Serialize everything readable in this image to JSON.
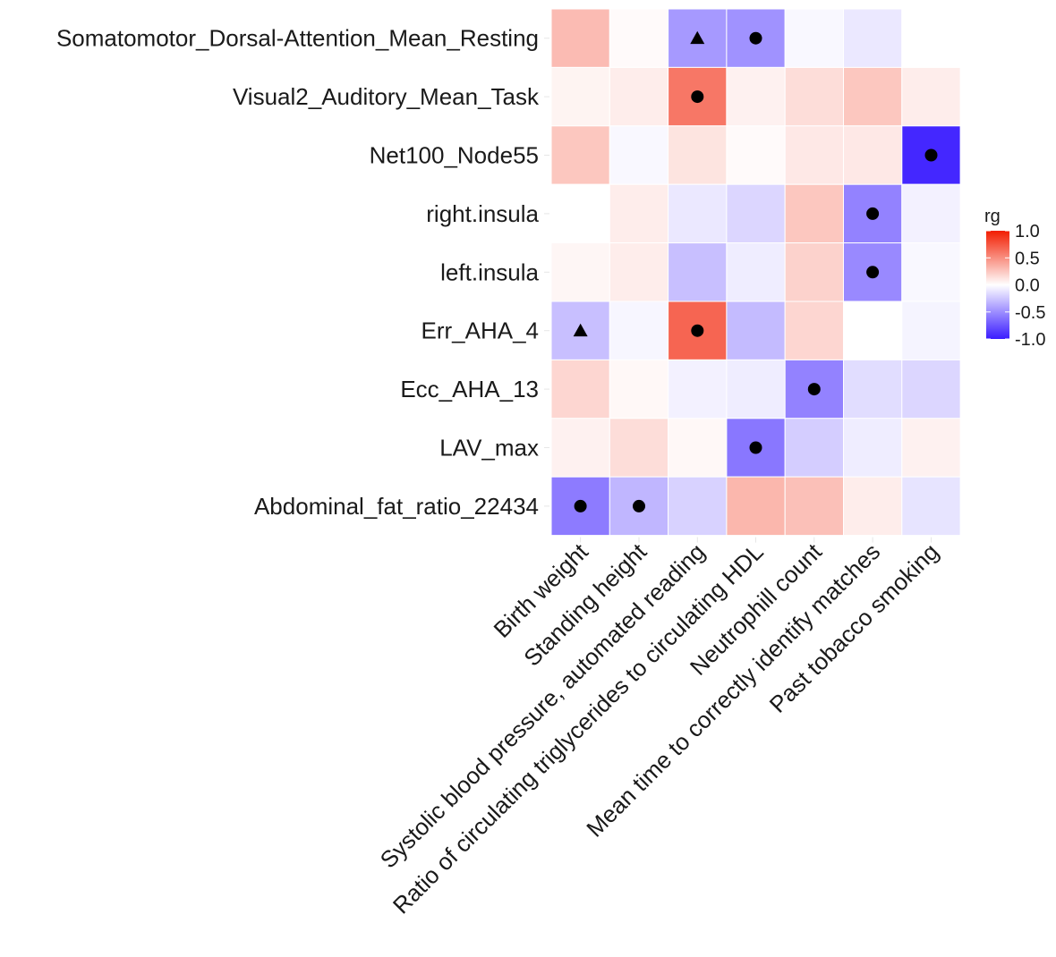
{
  "chart_data": {
    "type": "heatmap",
    "legend": {
      "title": "rg",
      "ticks": [
        1.0,
        0.5,
        0.0,
        -0.5,
        -1.0
      ],
      "tick_labels": [
        "1.0",
        "0.5",
        "0.0",
        "-0.5",
        "-1.0"
      ],
      "range": [
        -1,
        1
      ],
      "placement": "right"
    },
    "color_scale": {
      "low": "#3a1cff",
      "mid": "#ffffff",
      "high": "#f21d00"
    },
    "rows": [
      "Somatomotor_Dorsal-Attention_Mean_Resting",
      "Visual2_Auditory_Mean_Task",
      "Net100_Node55",
      "right.insula",
      "left.insula",
      "Err_AHA_4",
      "Ecc_AHA_13",
      "LAV_max",
      "Abdominal_fat_ratio_22434"
    ],
    "columns": [
      "Birth weight",
      "Standing height",
      "Systolic blood pressure, automated reading",
      "Ratio of circulating triglycerides to circulating HDL",
      "Neutrophill count",
      "Mean time to correctly identify matches",
      "Past tobacco smoking"
    ],
    "values": [
      [
        0.3,
        0.02,
        -0.45,
        -0.48,
        -0.03,
        -0.1,
        0.0
      ],
      [
        0.05,
        0.08,
        0.6,
        0.06,
        0.15,
        0.25,
        0.08
      ],
      [
        0.25,
        -0.03,
        0.12,
        0.02,
        0.1,
        0.1,
        -0.95
      ],
      [
        0.0,
        0.08,
        -0.1,
        -0.18,
        0.25,
        -0.55,
        -0.06
      ],
      [
        0.04,
        0.08,
        -0.28,
        -0.08,
        0.2,
        -0.52,
        -0.03
      ],
      [
        -0.28,
        -0.04,
        0.68,
        -0.3,
        0.18,
        0.0,
        -0.05
      ],
      [
        0.18,
        0.03,
        -0.06,
        -0.08,
        -0.55,
        -0.15,
        -0.18
      ],
      [
        0.06,
        0.15,
        0.03,
        -0.6,
        -0.22,
        -0.08,
        0.06
      ],
      [
        -0.58,
        -0.32,
        -0.2,
        0.32,
        0.28,
        0.08,
        -0.12
      ]
    ],
    "markers": [
      {
        "row": 0,
        "col": 2,
        "symbol": "triangle"
      },
      {
        "row": 0,
        "col": 3,
        "symbol": "circle"
      },
      {
        "row": 1,
        "col": 2,
        "symbol": "circle"
      },
      {
        "row": 2,
        "col": 6,
        "symbol": "circle"
      },
      {
        "row": 3,
        "col": 5,
        "symbol": "circle"
      },
      {
        "row": 4,
        "col": 5,
        "symbol": "circle"
      },
      {
        "row": 5,
        "col": 0,
        "symbol": "triangle"
      },
      {
        "row": 5,
        "col": 2,
        "symbol": "circle"
      },
      {
        "row": 6,
        "col": 4,
        "symbol": "circle"
      },
      {
        "row": 7,
        "col": 3,
        "symbol": "circle"
      },
      {
        "row": 8,
        "col": 0,
        "symbol": "circle"
      },
      {
        "row": 8,
        "col": 1,
        "symbol": "circle"
      }
    ],
    "grid": false
  }
}
